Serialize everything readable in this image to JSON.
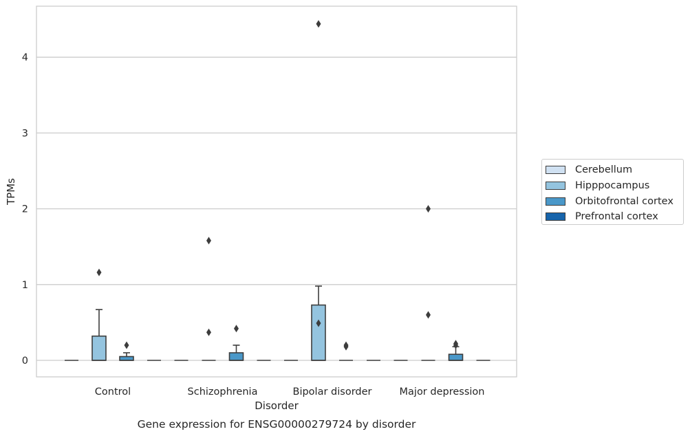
{
  "chart_data": {
    "type": "box",
    "title": "Gene expression for ENSG00000279724 by disorder",
    "xlabel": "Disorder",
    "ylabel": "TPMs",
    "ylim": [
      -0.22,
      4.7
    ],
    "yticks": [
      0,
      1,
      2,
      3,
      4
    ],
    "grid": "horizontal",
    "legend_position": "right",
    "categories": [
      "Control",
      "Schizophrenia",
      "Bipolar disorder",
      "Major depression"
    ],
    "series": [
      {
        "name": "Cerebellum",
        "color": "#d0e1f2",
        "boxes": [
          {
            "min": 0,
            "q1": 0,
            "median": 0,
            "q3": 0,
            "max": 0,
            "outliers": []
          },
          {
            "min": 0,
            "q1": 0,
            "median": 0,
            "q3": 0,
            "max": 0,
            "outliers": []
          },
          {
            "min": 0,
            "q1": 0,
            "median": 0,
            "q3": 0,
            "max": 0,
            "outliers": []
          },
          {
            "min": 0,
            "q1": 0,
            "median": 0,
            "q3": 0,
            "max": 0,
            "outliers": []
          }
        ]
      },
      {
        "name": "Hipppocampus",
        "color": "#94c4df",
        "boxes": [
          {
            "min": 0,
            "q1": 0,
            "median": 0,
            "q3": 0.32,
            "max": 0.67,
            "outliers": [
              1.16
            ]
          },
          {
            "min": 0,
            "q1": 0,
            "median": 0,
            "q3": 0,
            "max": 0,
            "outliers": [
              0.37,
              1.58
            ]
          },
          {
            "min": 0,
            "q1": 0,
            "median": 0,
            "q3": 0.73,
            "max": 0.98,
            "outliers": [
              0.49,
              4.44
            ]
          },
          {
            "min": 0,
            "q1": 0,
            "median": 0,
            "q3": 0,
            "max": 0,
            "outliers": [
              0.6,
              2.0
            ]
          }
        ]
      },
      {
        "name": "Orbitofrontal cortex",
        "color": "#4a98c9",
        "boxes": [
          {
            "min": 0,
            "q1": 0,
            "median": 0,
            "q3": 0.05,
            "max": 0.1,
            "outliers": [
              0.2
            ]
          },
          {
            "min": 0,
            "q1": 0,
            "median": 0,
            "q3": 0.1,
            "max": 0.2,
            "outliers": [
              0.42
            ]
          },
          {
            "min": 0,
            "q1": 0,
            "median": 0,
            "q3": 0,
            "max": 0,
            "outliers": [
              0.18,
              0.2
            ]
          },
          {
            "min": 0,
            "q1": 0,
            "median": 0,
            "q3": 0.08,
            "max": 0.18,
            "outliers": [
              0.2,
              0.22
            ]
          }
        ]
      },
      {
        "name": "Prefrontal cortex",
        "color": "#1764ab",
        "boxes": [
          {
            "min": 0,
            "q1": 0,
            "median": 0,
            "q3": 0,
            "max": 0,
            "outliers": []
          },
          {
            "min": 0,
            "q1": 0,
            "median": 0,
            "q3": 0,
            "max": 0,
            "outliers": []
          },
          {
            "min": 0,
            "q1": 0,
            "median": 0,
            "q3": 0,
            "max": 0,
            "outliers": []
          },
          {
            "min": 0,
            "q1": 0,
            "median": 0,
            "q3": 0,
            "max": 0,
            "outliers": []
          }
        ]
      }
    ]
  }
}
